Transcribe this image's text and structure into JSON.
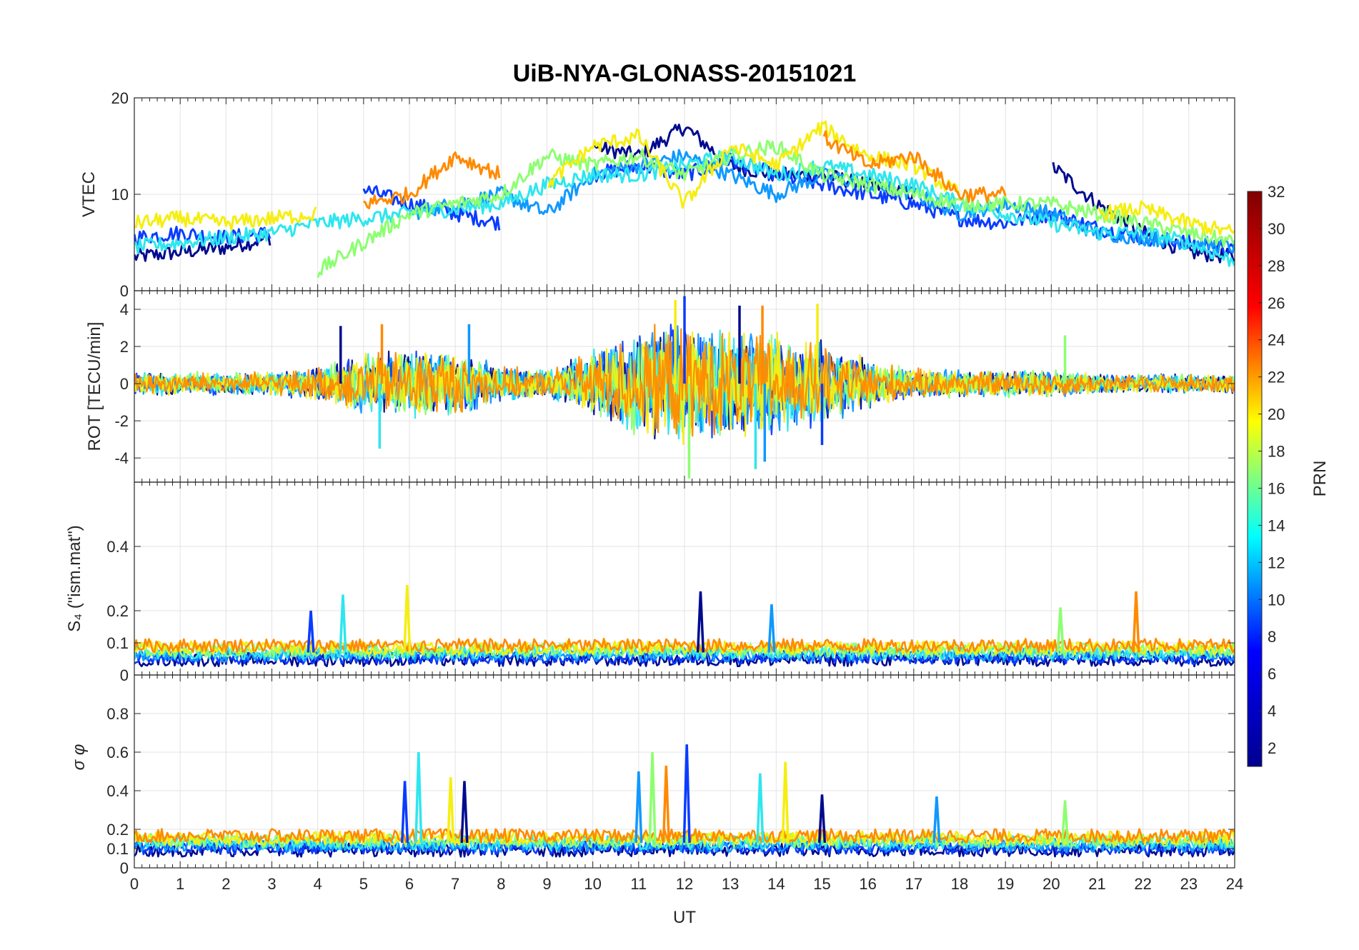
{
  "title": "UiB-NYA-GLONASS-20151021",
  "chart_data": [
    {
      "type": "line",
      "ylabel": "VTEC",
      "xlim": [
        0,
        24
      ],
      "ylim": [
        0,
        20
      ],
      "yticks": [
        "0",
        "10",
        "20"
      ],
      "grid": true,
      "x_points": [
        0,
        1,
        2,
        3,
        4,
        5,
        6,
        7,
        8,
        9,
        10,
        11,
        12,
        13,
        14,
        15,
        16,
        17,
        18,
        19,
        20,
        21,
        22,
        23,
        24
      ],
      "series": [
        {
          "color": "#000a8f",
          "values": [
            3.5,
            4,
            4.5,
            5.5,
            null,
            null,
            null,
            null,
            null,
            null,
            15,
            14,
            17,
            13,
            12,
            12,
            11,
            10,
            null,
            null,
            13,
            9,
            6,
            4,
            3.5
          ]
        },
        {
          "color": "#0a3cff",
          "values": [
            5.5,
            6,
            5.5,
            6,
            null,
            10.5,
            9,
            8,
            7,
            null,
            12,
            13,
            12,
            13.5,
            12,
            11,
            10,
            9,
            7.5,
            7,
            8,
            6.5,
            5.5,
            5,
            4
          ]
        },
        {
          "color": "#0f98ff",
          "values": [
            null,
            null,
            null,
            null,
            null,
            null,
            8,
            9,
            10,
            8,
            12,
            13,
            14,
            12,
            10,
            12,
            11,
            10,
            8,
            9,
            8,
            6,
            5.5,
            5,
            4.5
          ]
        },
        {
          "color": "#2ee6ee",
          "values": [
            4.5,
            5,
            5.5,
            6,
            7,
            7.5,
            8,
            8.5,
            9,
            11,
            12,
            12,
            13,
            14,
            12,
            13,
            12,
            11,
            9,
            8,
            7,
            6,
            6,
            5,
            3
          ]
        },
        {
          "color": "#8cff70",
          "values": [
            null,
            null,
            null,
            null,
            2,
            5,
            8,
            9,
            10,
            14,
            13,
            14,
            12,
            14,
            15,
            12,
            11,
            10,
            9,
            9,
            9,
            8,
            7,
            6,
            5
          ]
        },
        {
          "color": "#f5ee10",
          "values": [
            7,
            7.5,
            7,
            7.5,
            8,
            null,
            null,
            null,
            null,
            11,
            15,
            16,
            9,
            15,
            13,
            17,
            14,
            13,
            10,
            null,
            null,
            8,
            8.5,
            7,
            6
          ]
        },
        {
          "color": "#ff8a00",
          "values": [
            null,
            null,
            null,
            null,
            null,
            9,
            10,
            14,
            12,
            null,
            null,
            null,
            null,
            null,
            null,
            16,
            13,
            14,
            10,
            10,
            null,
            null,
            null,
            null,
            null
          ]
        }
      ]
    },
    {
      "type": "line",
      "ylabel": "ROT [TECU/min]",
      "xlim": [
        0,
        24
      ],
      "ylim": [
        -5.3,
        5
      ],
      "yticks": [
        "-4",
        "-2",
        "0",
        "2",
        "4"
      ],
      "grid": true,
      "amplitude_profile": {
        "x": [
          0,
          3,
          4,
          5,
          6,
          7,
          8,
          9,
          10,
          11,
          12,
          13,
          14,
          15,
          16,
          17,
          18,
          19,
          20,
          21,
          22,
          23,
          24
        ],
        "amp": [
          0.6,
          0.6,
          0.9,
          1.6,
          1.9,
          1.7,
          0.9,
          0.7,
          1.8,
          2.8,
          3.2,
          2.8,
          2.6,
          2.2,
          1.3,
          0.8,
          0.7,
          0.7,
          0.7,
          0.5,
          0.5,
          0.5,
          0.5
        ]
      },
      "spikes": [
        {
          "x": 4.5,
          "y": 3.1
        },
        {
          "x": 5.35,
          "y": -3.5
        },
        {
          "x": 5.4,
          "y": 3.2
        },
        {
          "x": 7.3,
          "y": 3.2
        },
        {
          "x": 11.8,
          "y": 4.5
        },
        {
          "x": 12.0,
          "y": 4.7
        },
        {
          "x": 12.1,
          "y": -5.1
        },
        {
          "x": 13.2,
          "y": 4.2
        },
        {
          "x": 13.55,
          "y": -4.6
        },
        {
          "x": 13.7,
          "y": 4.2
        },
        {
          "x": 13.75,
          "y": -4.2
        },
        {
          "x": 14.9,
          "y": 4.3
        },
        {
          "x": 15.0,
          "y": -3.3
        },
        {
          "x": 20.3,
          "y": 2.6
        }
      ]
    },
    {
      "type": "line",
      "ylabel": "S₄ (\"ism.mat\")",
      "xlim": [
        0,
        24
      ],
      "ylim": [
        0,
        0.6
      ],
      "yticks": [
        "0",
        "0.1",
        "0.2",
        "0.4"
      ],
      "grid": true,
      "baseline": 0.07,
      "spikes": [
        {
          "x": 3.85,
          "y": 0.2
        },
        {
          "x": 4.55,
          "y": 0.25
        },
        {
          "x": 5.95,
          "y": 0.28
        },
        {
          "x": 12.35,
          "y": 0.26
        },
        {
          "x": 13.9,
          "y": 0.22
        },
        {
          "x": 20.2,
          "y": 0.21
        },
        {
          "x": 21.85,
          "y": 0.26
        }
      ]
    },
    {
      "type": "line",
      "ylabel": "σ φ",
      "xlabel": "UT",
      "xlim": [
        0,
        24
      ],
      "ylim": [
        0,
        1
      ],
      "yticks": [
        "0",
        "0.1",
        "0.2",
        "0.4",
        "0.6",
        "0.8"
      ],
      "xticks": [
        "0",
        "1",
        "2",
        "3",
        "4",
        "5",
        "6",
        "7",
        "8",
        "9",
        "10",
        "11",
        "12",
        "13",
        "14",
        "15",
        "16",
        "17",
        "18",
        "19",
        "20",
        "21",
        "22",
        "23",
        "24"
      ],
      "grid": true,
      "baseline": 0.13,
      "spikes": [
        {
          "x": 5.9,
          "y": 0.45
        },
        {
          "x": 6.2,
          "y": 0.6
        },
        {
          "x": 6.9,
          "y": 0.47
        },
        {
          "x": 7.2,
          "y": 0.45
        },
        {
          "x": 11.0,
          "y": 0.5
        },
        {
          "x": 11.3,
          "y": 0.6
        },
        {
          "x": 11.6,
          "y": 0.53
        },
        {
          "x": 12.05,
          "y": 0.64
        },
        {
          "x": 13.65,
          "y": 0.49
        },
        {
          "x": 14.2,
          "y": 0.55
        },
        {
          "x": 15.0,
          "y": 0.38
        },
        {
          "x": 17.5,
          "y": 0.37
        },
        {
          "x": 20.3,
          "y": 0.35
        }
      ]
    }
  ],
  "colorbar": {
    "label": "PRN",
    "range": [
      1,
      32
    ],
    "ticks": [
      "2",
      "4",
      "6",
      "8",
      "10",
      "12",
      "14",
      "16",
      "18",
      "20",
      "22",
      "24",
      "26",
      "28",
      "30",
      "32"
    ],
    "colors": [
      "#00008f",
      "#0000ff",
      "#00ffff",
      "#ffff00",
      "#ff0000",
      "#800000"
    ]
  }
}
